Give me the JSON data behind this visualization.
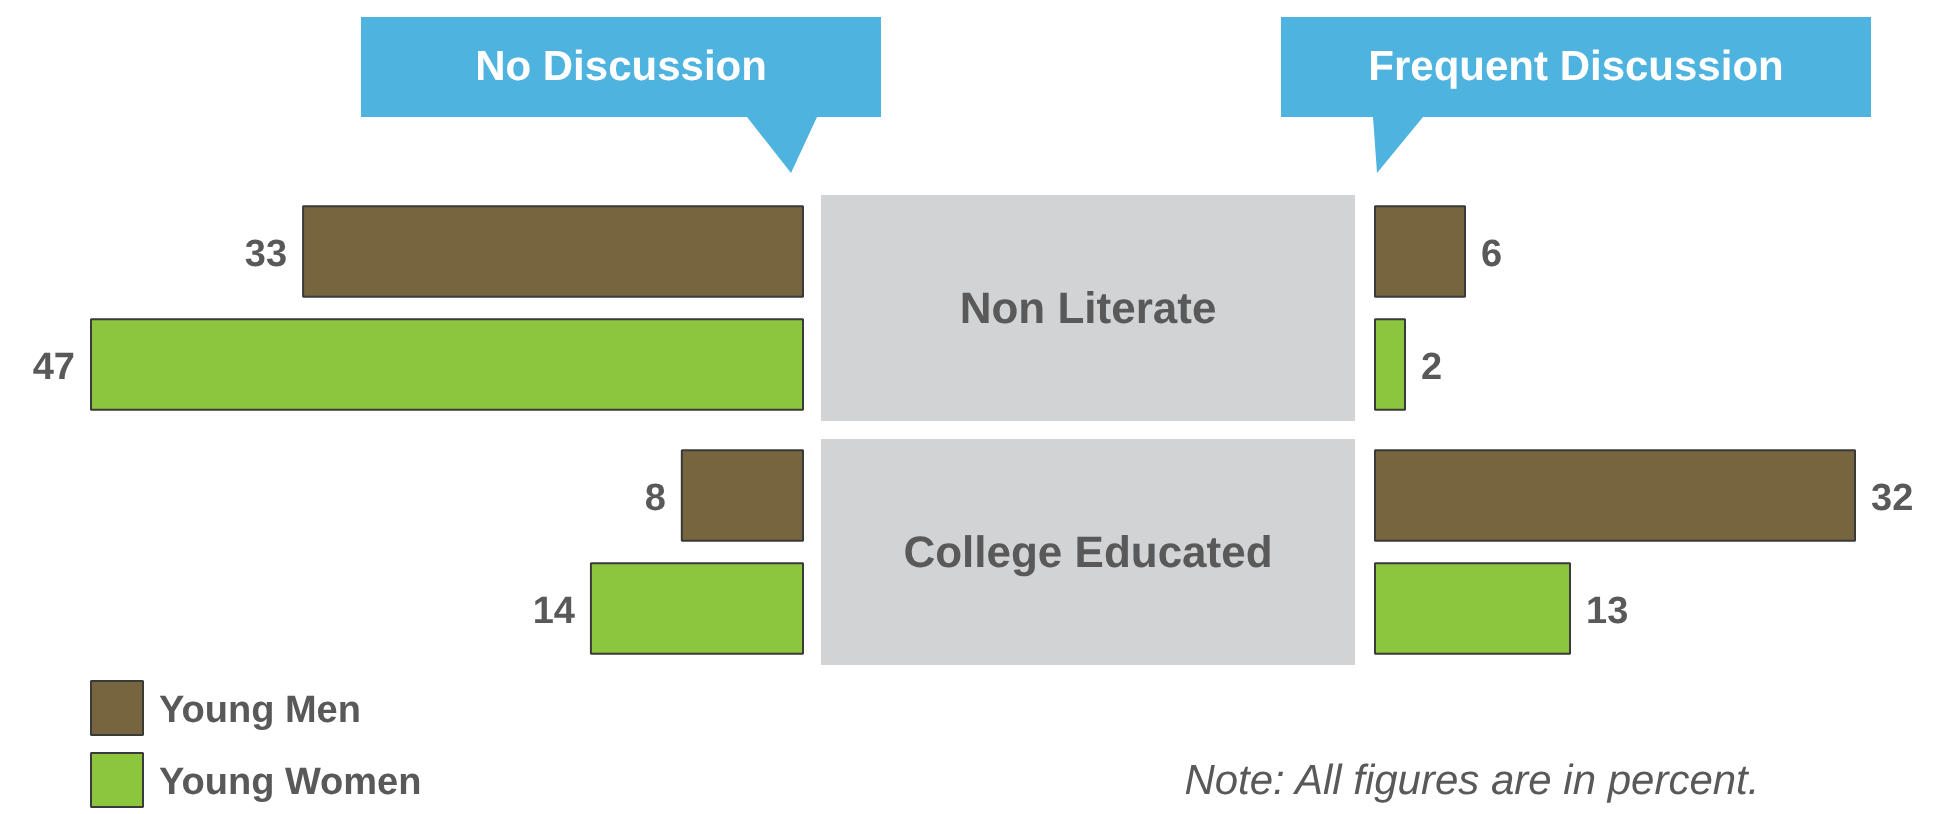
{
  "chart_data": [
    {
      "type": "bar",
      "orientation": "horizontal",
      "title": "No Discussion",
      "categories": [
        "Non Literate",
        "College Educated"
      ],
      "series": [
        {
          "name": "Young Men",
          "color": "#76653f",
          "values": [
            33,
            8
          ]
        },
        {
          "name": "Young Women",
          "color": "#8cc63f",
          "values": [
            47,
            14
          ]
        }
      ],
      "data_labels": true,
      "legend": "bottom left"
    },
    {
      "type": "bar",
      "orientation": "horizontal",
      "title": "Frequent Discussion",
      "series": [
        {
          "color": "#76653f",
          "values": [
            6,
            32
          ]
        },
        {
          "color": "#8cc63f",
          "values": [
            2,
            13
          ]
        }
      ],
      "data_labels": true,
      "annotations": [
        "Note: All figures are in percent."
      ]
    }
  ]
}
